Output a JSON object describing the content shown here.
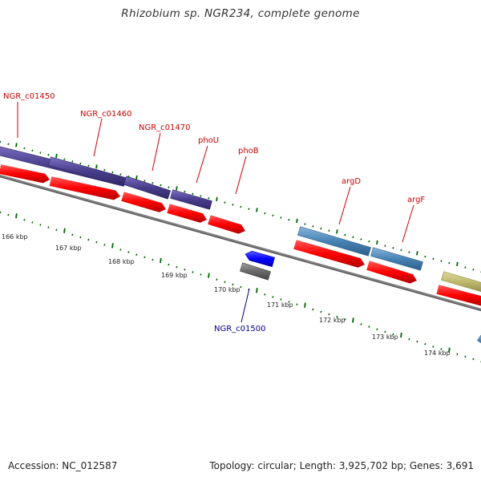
{
  "title": "Rhizobium sp. NGR234, complete genome",
  "footer": {
    "accession": "Accession: NC_012587",
    "summary": "Topology: circular; Length: 3,925,702 bp; Genes: 3,691"
  },
  "scale": {
    "unit": "kbp",
    "ticks": [
      "166 kbp",
      "167 kbp",
      "168 kbp",
      "169 kbp",
      "170 kbp",
      "171 kbp",
      "172 kbp",
      "173 kbp",
      "174 kbp"
    ]
  },
  "features": [
    {
      "label": "NGR_c01450",
      "strand": "+",
      "color": "#483d8b"
    },
    {
      "label": "NGR_c01460",
      "strand": "+",
      "color": "#483d8b"
    },
    {
      "label": "NGR_c01470",
      "strand": "+",
      "color": "#483d8b"
    },
    {
      "label": "phoU",
      "strand": "+",
      "color": "#483d8b"
    },
    {
      "label": "phoB",
      "strand": "+",
      "color": "#ff0000"
    },
    {
      "label": "argD",
      "strand": "+",
      "color": "#4682b4"
    },
    {
      "label": "argF",
      "strand": "+",
      "color": "#4682b4"
    },
    {
      "label": "",
      "strand": "+",
      "color": "#bdb76b"
    },
    {
      "label": "NGR_c01500",
      "strand": "-",
      "color": "#0000ff"
    }
  ],
  "colors": {
    "label_forward": "#cc0000",
    "label_reverse": "#00008b",
    "tick": "#006400",
    "cds": "#ff0000",
    "backbone": "#808080",
    "misc_gray": "#696969"
  }
}
